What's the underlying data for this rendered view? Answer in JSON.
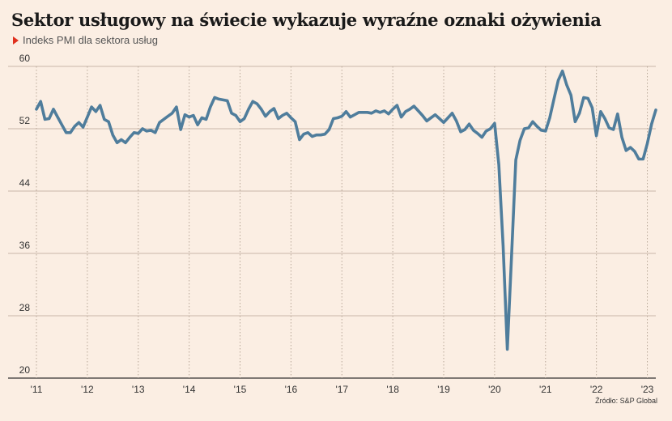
{
  "header": {
    "title": "Sektor usługowy na świecie wykazuje wyraźne oznaki ożywienia",
    "subtitle": "Indeks PMI dla sektora usług"
  },
  "footer": {
    "source": "Źródło: S&P Global"
  },
  "chart_data": {
    "type": "line",
    "title": "Sektor usługowy na świecie wykazuje wyraźne oznaki ożywienia",
    "subtitle": "Indeks PMI dla sektora usług",
    "xlabel": "",
    "ylabel": "",
    "ylim": [
      20,
      60
    ],
    "y_ticks": [
      20,
      28,
      36,
      44,
      52,
      60
    ],
    "x_ticks": [
      {
        "label": "'11",
        "year": 2011
      },
      {
        "label": "'12",
        "year": 2012
      },
      {
        "label": "'13",
        "year": 2013
      },
      {
        "label": "'14",
        "year": 2014
      },
      {
        "label": "'15",
        "year": 2015
      },
      {
        "label": "'16",
        "year": 2016
      },
      {
        "label": "'17",
        "year": 2017
      },
      {
        "label": "'18",
        "year": 2018
      },
      {
        "label": "'19",
        "year": 2019
      },
      {
        "label": "'20",
        "year": 2020
      },
      {
        "label": "'21",
        "year": 2021
      },
      {
        "label": "'22",
        "year": 2022
      },
      {
        "label": "'23",
        "year": 2023
      }
    ],
    "grid": true,
    "line_color": "#4f7d9c",
    "series": [
      {
        "name": "",
        "points": [
          [
            "2011-01",
            54.5
          ],
          [
            "2011-02",
            55.5
          ],
          [
            "2011-03",
            53.2
          ],
          [
            "2011-04",
            53.3
          ],
          [
            "2011-05",
            54.5
          ],
          [
            "2011-06",
            53.5
          ],
          [
            "2011-07",
            52.5
          ],
          [
            "2011-08",
            51.5
          ],
          [
            "2011-09",
            51.5
          ],
          [
            "2011-10",
            52.3
          ],
          [
            "2011-11",
            52.8
          ],
          [
            "2011-12",
            52.2
          ],
          [
            "2012-01",
            53.5
          ],
          [
            "2012-02",
            54.8
          ],
          [
            "2012-03",
            54.2
          ],
          [
            "2012-04",
            55.0
          ],
          [
            "2012-05",
            53.2
          ],
          [
            "2012-06",
            52.9
          ],
          [
            "2012-07",
            51.2
          ],
          [
            "2012-08",
            50.2
          ],
          [
            "2012-09",
            50.6
          ],
          [
            "2012-10",
            50.2
          ],
          [
            "2012-11",
            50.9
          ],
          [
            "2012-12",
            51.5
          ],
          [
            "2013-01",
            51.4
          ],
          [
            "2013-02",
            52.0
          ],
          [
            "2013-03",
            51.7
          ],
          [
            "2013-04",
            51.8
          ],
          [
            "2013-05",
            51.5
          ],
          [
            "2013-06",
            52.8
          ],
          [
            "2013-07",
            53.2
          ],
          [
            "2013-08",
            53.6
          ],
          [
            "2013-09",
            54.0
          ],
          [
            "2013-10",
            54.8
          ],
          [
            "2013-11",
            51.9
          ],
          [
            "2013-12",
            53.8
          ],
          [
            "2014-01",
            53.5
          ],
          [
            "2014-02",
            53.7
          ],
          [
            "2014-03",
            52.5
          ],
          [
            "2014-04",
            53.4
          ],
          [
            "2014-05",
            53.2
          ],
          [
            "2014-06",
            54.8
          ],
          [
            "2014-07",
            56.0
          ],
          [
            "2014-08",
            55.8
          ],
          [
            "2014-09",
            55.7
          ],
          [
            "2014-10",
            55.6
          ],
          [
            "2014-11",
            54.0
          ],
          [
            "2014-12",
            53.7
          ],
          [
            "2015-01",
            52.9
          ],
          [
            "2015-02",
            53.3
          ],
          [
            "2015-03",
            54.5
          ],
          [
            "2015-04",
            55.5
          ],
          [
            "2015-05",
            55.2
          ],
          [
            "2015-06",
            54.5
          ],
          [
            "2015-07",
            53.6
          ],
          [
            "2015-08",
            54.2
          ],
          [
            "2015-09",
            54.6
          ],
          [
            "2015-10",
            53.3
          ],
          [
            "2015-11",
            53.7
          ],
          [
            "2015-12",
            54.0
          ],
          [
            "2016-01",
            53.4
          ],
          [
            "2016-02",
            52.9
          ],
          [
            "2016-03",
            50.6
          ],
          [
            "2016-04",
            51.3
          ],
          [
            "2016-05",
            51.5
          ],
          [
            "2016-06",
            51.0
          ],
          [
            "2016-07",
            51.2
          ],
          [
            "2016-08",
            51.2
          ],
          [
            "2016-09",
            51.3
          ],
          [
            "2016-10",
            51.9
          ],
          [
            "2016-11",
            53.3
          ],
          [
            "2016-12",
            53.4
          ],
          [
            "2017-01",
            53.6
          ],
          [
            "2017-02",
            54.2
          ],
          [
            "2017-03",
            53.5
          ],
          [
            "2017-04",
            53.8
          ],
          [
            "2017-05",
            54.1
          ],
          [
            "2017-06",
            54.1
          ],
          [
            "2017-07",
            54.1
          ],
          [
            "2017-08",
            54.0
          ],
          [
            "2017-09",
            54.3
          ],
          [
            "2017-10",
            54.1
          ],
          [
            "2017-11",
            54.3
          ],
          [
            "2017-12",
            53.9
          ],
          [
            "2018-01",
            54.5
          ],
          [
            "2018-02",
            55.0
          ],
          [
            "2018-03",
            53.5
          ],
          [
            "2018-04",
            54.2
          ],
          [
            "2018-05",
            54.5
          ],
          [
            "2018-06",
            54.9
          ],
          [
            "2018-07",
            54.3
          ],
          [
            "2018-08",
            53.7
          ],
          [
            "2018-09",
            53.0
          ],
          [
            "2018-10",
            53.4
          ],
          [
            "2018-11",
            53.8
          ],
          [
            "2018-12",
            53.3
          ],
          [
            "2019-01",
            52.8
          ],
          [
            "2019-02",
            53.4
          ],
          [
            "2019-03",
            54.0
          ],
          [
            "2019-04",
            53.0
          ],
          [
            "2019-05",
            51.6
          ],
          [
            "2019-06",
            51.9
          ],
          [
            "2019-07",
            52.6
          ],
          [
            "2019-08",
            51.8
          ],
          [
            "2019-09",
            51.4
          ],
          [
            "2019-10",
            50.9
          ],
          [
            "2019-11",
            51.7
          ],
          [
            "2019-12",
            52.0
          ],
          [
            "2020-01",
            52.7
          ],
          [
            "2020-02",
            47.4
          ],
          [
            "2020-03",
            37.0
          ],
          [
            "2020-04",
            23.7
          ],
          [
            "2020-05",
            35.6
          ],
          [
            "2020-06",
            48.0
          ],
          [
            "2020-07",
            50.5
          ],
          [
            "2020-08",
            52.0
          ],
          [
            "2020-09",
            52.1
          ],
          [
            "2020-10",
            52.9
          ],
          [
            "2020-11",
            52.3
          ],
          [
            "2020-12",
            51.8
          ],
          [
            "2021-01",
            51.7
          ],
          [
            "2021-02",
            53.4
          ],
          [
            "2021-03",
            55.8
          ],
          [
            "2021-04",
            58.2
          ],
          [
            "2021-05",
            59.4
          ],
          [
            "2021-06",
            57.6
          ],
          [
            "2021-07",
            56.3
          ],
          [
            "2021-08",
            52.9
          ],
          [
            "2021-09",
            54.0
          ],
          [
            "2021-10",
            56.0
          ],
          [
            "2021-11",
            55.9
          ],
          [
            "2021-12",
            54.7
          ],
          [
            "2022-01",
            51.1
          ],
          [
            "2022-02",
            54.2
          ],
          [
            "2022-03",
            53.3
          ],
          [
            "2022-04",
            52.1
          ],
          [
            "2022-05",
            51.9
          ],
          [
            "2022-06",
            53.9
          ],
          [
            "2022-07",
            50.9
          ],
          [
            "2022-08",
            49.2
          ],
          [
            "2022-09",
            49.6
          ],
          [
            "2022-10",
            49.1
          ],
          [
            "2022-11",
            48.1
          ],
          [
            "2022-12",
            48.1
          ],
          [
            "2023-01",
            50.1
          ],
          [
            "2023-02",
            52.6
          ],
          [
            "2023-03",
            54.4
          ]
        ]
      }
    ]
  }
}
